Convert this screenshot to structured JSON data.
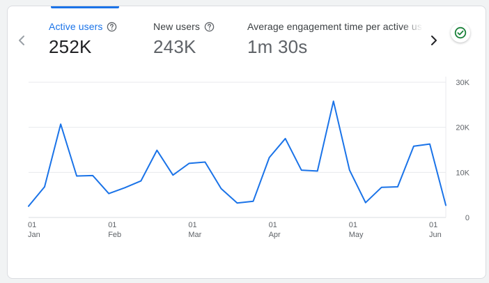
{
  "metrics": [
    {
      "label": "Active users",
      "value": "252K",
      "active": true
    },
    {
      "label": "New users",
      "value": "243K",
      "active": false
    },
    {
      "label": "Average engagement time per active user",
      "value": "1m 30s",
      "active": false
    }
  ],
  "icons": {
    "prev": "chevron-left-icon",
    "next": "chevron-right-icon",
    "help": "help-circle-icon",
    "status": "check-circle-icon"
  },
  "colors": {
    "accent": "#1a73e8",
    "line": "#1a73e8",
    "status_ok": "#188038",
    "grid": "#e8eaed"
  },
  "chart_data": {
    "type": "line",
    "series": [
      {
        "values": [
          2500,
          6800,
          20700,
          9200,
          9300,
          5300,
          6600,
          8100,
          14900,
          9400,
          12000,
          12300,
          6400,
          3200,
          3600,
          13300,
          17500,
          10500,
          10300,
          25800,
          10500,
          3300,
          6700,
          6800,
          15800,
          16300,
          2700
        ]
      }
    ],
    "x_tick_labels": [
      {
        "day": "01",
        "month": "Jan",
        "index": 0
      },
      {
        "day": "01",
        "month": "Feb",
        "index": 5
      },
      {
        "day": "01",
        "month": "Mar",
        "index": 10
      },
      {
        "day": "01",
        "month": "Apr",
        "index": 15
      },
      {
        "day": "01",
        "month": "May",
        "index": 20
      },
      {
        "day": "01",
        "month": "Jun",
        "index": 25
      }
    ],
    "y_ticks": [
      0,
      10000,
      20000,
      30000
    ],
    "y_tick_labels": [
      "0",
      "10K",
      "20K",
      "30K"
    ],
    "ylim": [
      0,
      30000
    ],
    "grid": true,
    "y_axis_position": "right"
  }
}
